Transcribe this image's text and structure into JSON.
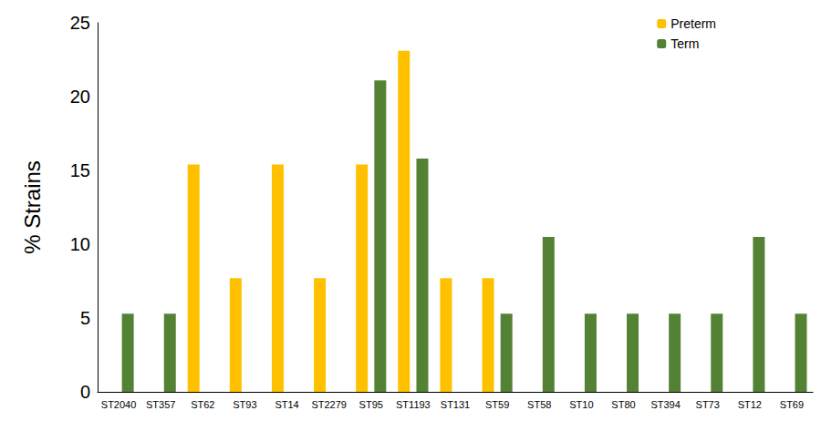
{
  "chart_data": {
    "type": "bar",
    "y_label": "% Strains",
    "categories": [
      "ST2040",
      "ST357",
      "ST62",
      "ST93",
      "ST14",
      "ST2279",
      "ST95",
      "ST1193",
      "ST131",
      "ST59",
      "ST58",
      "ST10",
      "ST80",
      "ST394",
      "ST73",
      "ST12",
      "ST69"
    ],
    "series": [
      {
        "name": "Preterm",
        "color": "#ffc000",
        "values": [
          null,
          null,
          15.4,
          7.7,
          15.4,
          7.7,
          15.4,
          23.1,
          7.7,
          7.7,
          null,
          null,
          null,
          null,
          null,
          null,
          null
        ]
      },
      {
        "name": "Term",
        "color": "#548235",
        "values": [
          5.3,
          5.3,
          null,
          null,
          null,
          null,
          21.1,
          15.8,
          null,
          5.3,
          10.5,
          5.3,
          5.3,
          5.3,
          5.3,
          10.5,
          5.3
        ]
      }
    ],
    "ylim": [
      0,
      25
    ],
    "yticks": [
      0,
      5,
      10,
      15,
      20,
      25
    ],
    "grid": false,
    "legend": "upper right"
  }
}
